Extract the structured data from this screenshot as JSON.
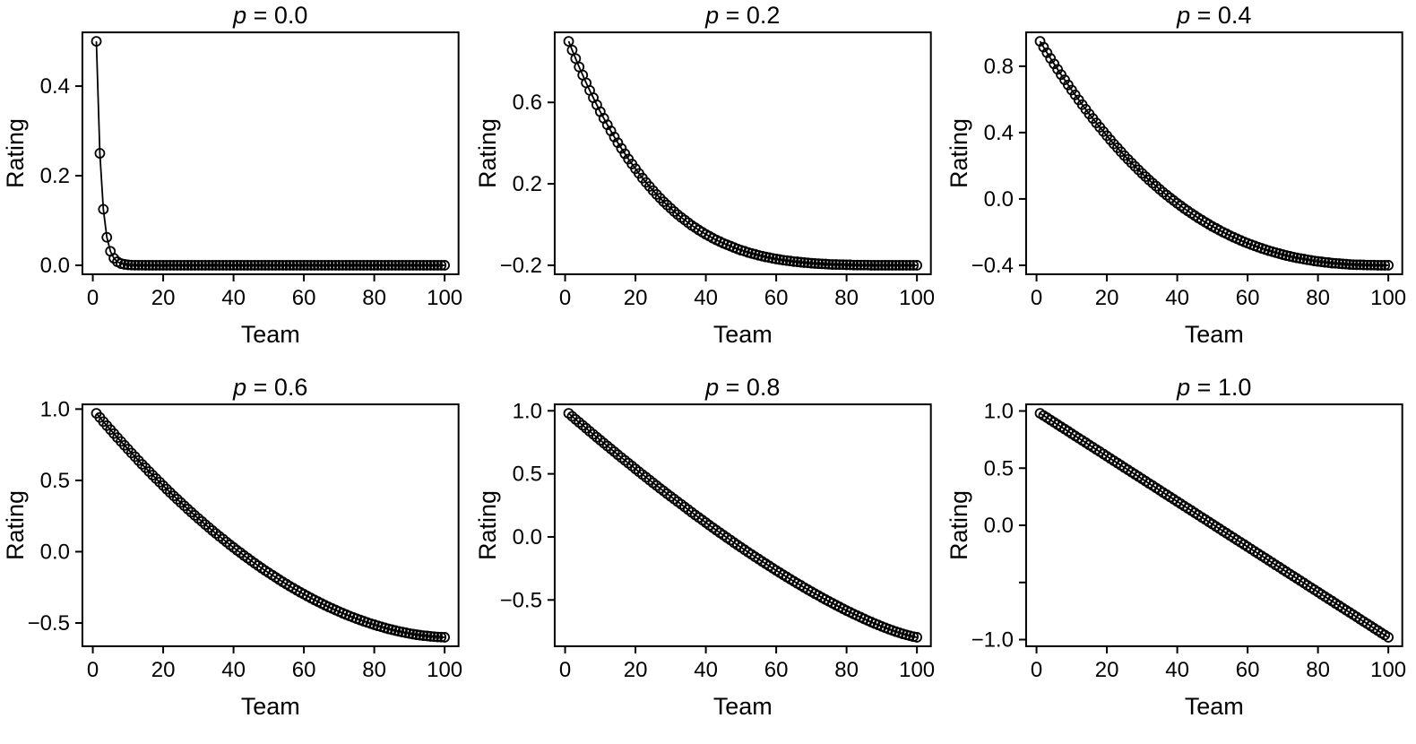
{
  "figure": {
    "layout": "2 rows x 3 columns",
    "background": "#ffffff",
    "color": "#000000",
    "marker": "open-circle",
    "line_style": "solid",
    "xlabel": "Team",
    "ylabel": "Rating",
    "x_values_rule": "x = team rank, 1 to 100",
    "x_ticks": [
      0,
      20,
      40,
      60,
      80,
      100
    ],
    "x_tick_labels": [
      "0",
      "20",
      "40",
      "60",
      "80",
      "100"
    ]
  },
  "chart_data": [
    {
      "type": "scatter",
      "title": "p = 0.0",
      "title_symbol": "p",
      "title_rest": " = 0.0",
      "p": 0.0,
      "xlabel": "Team",
      "ylabel": "Rating",
      "xlim": [
        -2.96,
        103.96
      ],
      "ylim": [
        -0.02,
        0.52
      ],
      "y_ticks": [
        0.0,
        0.2,
        0.4
      ],
      "y_tick_labels": [
        "0.0",
        "0.2",
        "0.4"
      ],
      "y": [
        0.5,
        0.25,
        0.125,
        0.0625,
        0.0313,
        0.0156,
        0.0078,
        0.0039,
        0.002,
        0.001,
        0.0005,
        0.0002,
        0.0001,
        0.0001,
        0,
        0,
        0,
        0,
        0,
        0,
        0,
        0,
        0,
        0,
        0,
        0,
        0,
        0,
        0,
        0,
        0,
        0,
        0,
        0,
        0,
        0,
        0,
        0,
        0,
        0,
        0,
        0,
        0,
        0,
        0,
        0,
        0,
        0,
        0,
        0,
        0,
        0,
        0,
        0,
        0,
        0,
        0,
        0,
        0,
        0,
        0,
        0,
        0,
        0,
        0,
        0,
        0,
        0,
        0,
        0,
        0,
        0,
        0,
        0,
        0,
        0,
        0,
        0,
        0,
        0,
        0,
        0,
        0,
        0,
        0,
        0,
        0,
        0,
        0,
        0,
        0,
        0,
        0,
        0,
        0,
        0,
        0,
        0,
        0,
        0
      ]
    },
    {
      "type": "scatter",
      "title": "p = 0.2",
      "title_symbol": "p",
      "title_rest": " = 0.2",
      "p": 0.2,
      "xlabel": "Team",
      "ylabel": "Rating",
      "xlim": [
        -2.96,
        103.96
      ],
      "ylim": [
        -0.244,
        0.944
      ],
      "y_ticks": [
        -0.2,
        0.2,
        0.6
      ],
      "y_tick_labels": [
        "−0.2",
        "0.2",
        "0.6"
      ],
      "y": [
        0.9,
        0.857,
        0.815,
        0.774,
        0.734,
        0.696,
        0.659,
        0.623,
        0.588,
        0.554,
        0.522,
        0.49,
        0.46,
        0.43,
        0.402,
        0.374,
        0.348,
        0.322,
        0.297,
        0.274,
        0.251,
        0.228,
        0.207,
        0.187,
        0.167,
        0.148,
        0.13,
        0.112,
        0.096,
        0.08,
        0.064,
        0.049,
        0.035,
        0.022,
        0.009,
        -0.004,
        -0.015,
        -0.027,
        -0.037,
        -0.048,
        -0.057,
        -0.067,
        -0.076,
        -0.084,
        -0.092,
        -0.099,
        -0.106,
        -0.113,
        -0.12,
        -0.126,
        -0.131,
        -0.137,
        -0.142,
        -0.146,
        -0.151,
        -0.155,
        -0.159,
        -0.162,
        -0.166,
        -0.169,
        -0.172,
        -0.175,
        -0.177,
        -0.179,
        -0.182,
        -0.183,
        -0.185,
        -0.187,
        -0.188,
        -0.19,
        -0.191,
        -0.192,
        -0.193,
        -0.194,
        -0.195,
        -0.196,
        -0.196,
        -0.197,
        -0.197,
        -0.198,
        -0.198,
        -0.199,
        -0.199,
        -0.199,
        -0.199,
        -0.199,
        -0.2,
        -0.2,
        -0.2,
        -0.2,
        -0.2,
        -0.2,
        -0.2,
        -0.2,
        -0.2,
        -0.2,
        -0.2,
        -0.2,
        -0.2,
        -0.2
      ]
    },
    {
      "type": "scatter",
      "title": "p = 0.4",
      "title_symbol": "p",
      "title_rest": " = 0.4",
      "p": 0.4,
      "xlabel": "Team",
      "ylabel": "Rating",
      "xlim": [
        -2.96,
        103.96
      ],
      "ylim": [
        -0.454,
        1.004
      ],
      "y_ticks": [
        -0.4,
        0.0,
        0.4,
        0.8
      ],
      "y_tick_labels": [
        "−0.4",
        "0.0",
        "0.4",
        "0.8"
      ],
      "y": [
        0.95,
        0.915,
        0.881,
        0.847,
        0.814,
        0.781,
        0.749,
        0.718,
        0.687,
        0.656,
        0.627,
        0.597,
        0.568,
        0.54,
        0.512,
        0.485,
        0.458,
        0.432,
        0.406,
        0.381,
        0.356,
        0.331,
        0.308,
        0.284,
        0.261,
        0.239,
        0.217,
        0.196,
        0.175,
        0.154,
        0.134,
        0.114,
        0.095,
        0.077,
        0.058,
        0.04,
        0.023,
        0.006,
        -0.01,
        -0.027,
        -0.042,
        -0.058,
        -0.072,
        -0.087,
        -0.101,
        -0.115,
        -0.128,
        -0.141,
        -0.153,
        -0.166,
        -0.177,
        -0.189,
        -0.2,
        -0.21,
        -0.221,
        -0.231,
        -0.24,
        -0.25,
        -0.259,
        -0.267,
        -0.275,
        -0.283,
        -0.291,
        -0.298,
        -0.305,
        -0.312,
        -0.318,
        -0.324,
        -0.33,
        -0.336,
        -0.341,
        -0.346,
        -0.351,
        -0.355,
        -0.359,
        -0.363,
        -0.367,
        -0.37,
        -0.374,
        -0.377,
        -0.379,
        -0.382,
        -0.384,
        -0.387,
        -0.388,
        -0.39,
        -0.392,
        -0.393,
        -0.395,
        -0.396,
        -0.397,
        -0.397,
        -0.398,
        -0.399,
        -0.399,
        -0.399,
        -0.4,
        -0.4,
        -0.4,
        -0.4
      ]
    },
    {
      "type": "scatter",
      "title": "p = 0.6",
      "title_symbol": "p",
      "title_rest": " = 0.6",
      "p": 0.6,
      "xlabel": "Team",
      "ylabel": "Rating",
      "xlim": [
        -2.96,
        103.96
      ],
      "ylim": [
        -0.663,
        1.033
      ],
      "y_ticks": [
        -0.5,
        0.0,
        0.5,
        1.0
      ],
      "y_tick_labels": [
        "−0.5",
        "0.0",
        "0.5",
        "1.0"
      ],
      "y": [
        0.97,
        0.941,
        0.912,
        0.884,
        0.856,
        0.828,
        0.8,
        0.773,
        0.746,
        0.719,
        0.692,
        0.666,
        0.639,
        0.613,
        0.588,
        0.562,
        0.537,
        0.512,
        0.488,
        0.463,
        0.439,
        0.415,
        0.391,
        0.368,
        0.345,
        0.322,
        0.299,
        0.277,
        0.255,
        0.233,
        0.212,
        0.19,
        0.169,
        0.148,
        0.128,
        0.108,
        0.088,
        0.068,
        0.048,
        0.029,
        0.01,
        -0.008,
        -0.027,
        -0.045,
        -0.063,
        -0.081,
        -0.098,
        -0.115,
        -0.132,
        -0.148,
        -0.164,
        -0.18,
        -0.196,
        -0.212,
        -0.227,
        -0.242,
        -0.256,
        -0.271,
        -0.285,
        -0.298,
        -0.312,
        -0.325,
        -0.338,
        -0.35,
        -0.363,
        -0.375,
        -0.387,
        -0.398,
        -0.409,
        -0.42,
        -0.431,
        -0.441,
        -0.451,
        -0.461,
        -0.47,
        -0.479,
        -0.488,
        -0.496,
        -0.505,
        -0.512,
        -0.52,
        -0.527,
        -0.534,
        -0.541,
        -0.547,
        -0.553,
        -0.559,
        -0.564,
        -0.569,
        -0.574,
        -0.578,
        -0.582,
        -0.585,
        -0.589,
        -0.591,
        -0.594,
        -0.596,
        -0.598,
        -0.599,
        -0.6
      ]
    },
    {
      "type": "scatter",
      "title": "p = 0.8",
      "title_symbol": "p",
      "title_rest": " = 0.8",
      "p": 0.8,
      "xlabel": "Team",
      "ylabel": "Rating",
      "xlim": [
        -2.96,
        103.96
      ],
      "ylim": [
        -0.867,
        1.051
      ],
      "y_ticks": [
        -0.5,
        0.0,
        0.5,
        1.0
      ],
      "y_tick_labels": [
        "−0.5",
        "0.0",
        "0.5",
        "1.0"
      ],
      "y": [
        0.98,
        0.956,
        0.932,
        0.908,
        0.885,
        0.861,
        0.837,
        0.814,
        0.79,
        0.767,
        0.744,
        0.721,
        0.698,
        0.675,
        0.652,
        0.629,
        0.607,
        0.584,
        0.562,
        0.539,
        0.517,
        0.495,
        0.473,
        0.451,
        0.429,
        0.407,
        0.385,
        0.364,
        0.342,
        0.321,
        0.3,
        0.279,
        0.258,
        0.237,
        0.216,
        0.195,
        0.174,
        0.154,
        0.134,
        0.113,
        0.093,
        0.073,
        0.053,
        0.033,
        0.014,
        -0.006,
        -0.025,
        -0.045,
        -0.064,
        -0.083,
        -0.102,
        -0.121,
        -0.139,
        -0.158,
        -0.176,
        -0.194,
        -0.212,
        -0.23,
        -0.248,
        -0.266,
        -0.283,
        -0.301,
        -0.318,
        -0.335,
        -0.352,
        -0.369,
        -0.385,
        -0.402,
        -0.418,
        -0.434,
        -0.45,
        -0.465,
        -0.481,
        -0.496,
        -0.511,
        -0.526,
        -0.541,
        -0.555,
        -0.57,
        -0.584,
        -0.597,
        -0.611,
        -0.624,
        -0.637,
        -0.65,
        -0.663,
        -0.675,
        -0.687,
        -0.698,
        -0.71,
        -0.721,
        -0.731,
        -0.741,
        -0.751,
        -0.76,
        -0.769,
        -0.777,
        -0.784,
        -0.791,
        -0.796
      ]
    },
    {
      "type": "scatter",
      "title": "p = 1.0",
      "title_symbol": "p",
      "title_rest": " = 1.0",
      "p": 1.0,
      "xlabel": "Team",
      "ylabel": "Rating",
      "xlim": [
        -2.96,
        103.96
      ],
      "ylim": [
        -1.058,
        1.058
      ],
      "y_ticks": [
        -1.0,
        -0.5,
        0.0,
        0.5,
        1.0
      ],
      "y_tick_labels": [
        "−1.0",
        "",
        "0.0",
        "0.5",
        "1.0"
      ],
      "y": [
        0.98,
        0.96,
        0.941,
        0.921,
        0.901,
        0.881,
        0.861,
        0.842,
        0.822,
        0.802,
        0.782,
        0.762,
        0.743,
        0.723,
        0.703,
        0.683,
        0.663,
        0.644,
        0.624,
        0.604,
        0.584,
        0.564,
        0.545,
        0.525,
        0.505,
        0.485,
        0.465,
        0.446,
        0.426,
        0.406,
        0.386,
        0.366,
        0.347,
        0.327,
        0.307,
        0.287,
        0.267,
        0.248,
        0.228,
        0.208,
        0.188,
        0.168,
        0.149,
        0.129,
        0.109,
        0.089,
        0.069,
        0.05,
        0.03,
        0.01,
        -0.01,
        -0.03,
        -0.05,
        -0.069,
        -0.089,
        -0.109,
        -0.129,
        -0.149,
        -0.168,
        -0.188,
        -0.208,
        -0.228,
        -0.248,
        -0.267,
        -0.287,
        -0.307,
        -0.327,
        -0.347,
        -0.366,
        -0.386,
        -0.406,
        -0.426,
        -0.446,
        -0.465,
        -0.485,
        -0.505,
        -0.525,
        -0.545,
        -0.564,
        -0.584,
        -0.604,
        -0.624,
        -0.644,
        -0.663,
        -0.683,
        -0.703,
        -0.723,
        -0.743,
        -0.762,
        -0.782,
        -0.802,
        -0.822,
        -0.842,
        -0.861,
        -0.881,
        -0.901,
        -0.921,
        -0.941,
        -0.96,
        -0.98
      ]
    }
  ]
}
